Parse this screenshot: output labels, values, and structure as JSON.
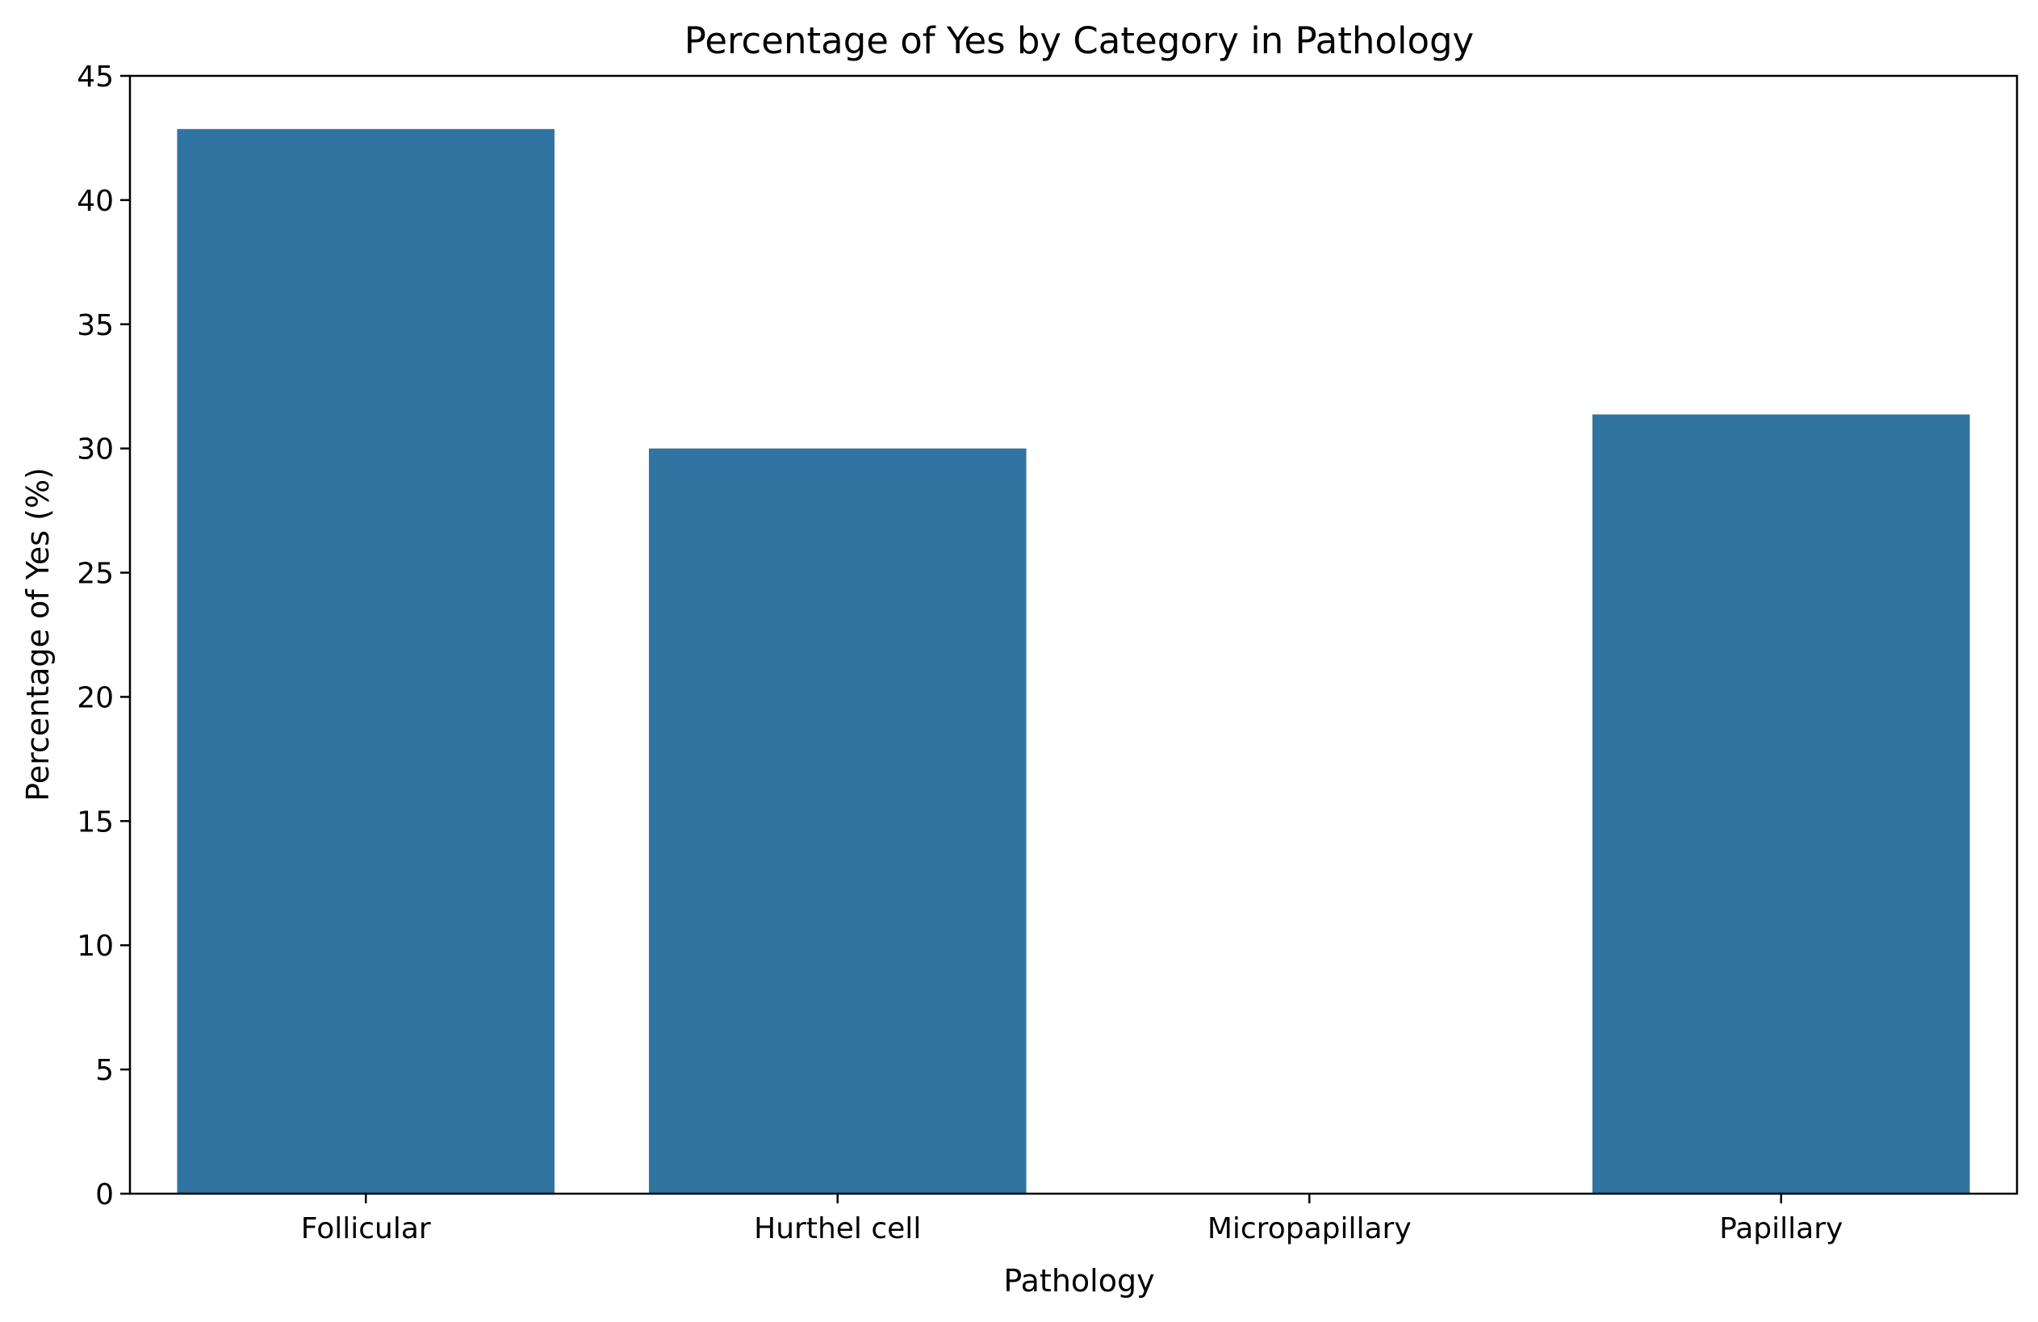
{
  "chart_data": {
    "type": "bar",
    "title": "Percentage of Yes by Category in Pathology",
    "xlabel": "Pathology",
    "ylabel": "Percentage of Yes (%)",
    "categories": [
      "Follicular",
      "Hurthel cell",
      "Micropapillary",
      "Papillary"
    ],
    "values": [
      42.86,
      30.0,
      0.0,
      31.37
    ],
    "ylim": [
      0,
      45
    ],
    "yticks": [
      0,
      5,
      10,
      15,
      20,
      25,
      30,
      35,
      40,
      45
    ],
    "grid": false,
    "legend": "none",
    "bar_color": "#3274a1"
  }
}
